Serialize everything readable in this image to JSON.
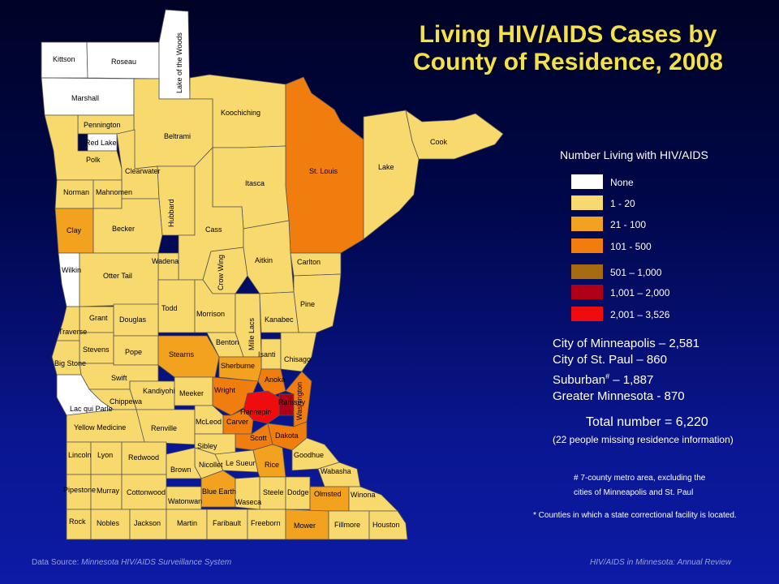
{
  "title": {
    "line1": "Living HIV/AIDS Cases by",
    "line2": "County of Residence, 2008"
  },
  "colors": {
    "none": "#ffffff",
    "c1_20": "#f8d96d",
    "c21_100": "#f2a21f",
    "c101_500": "#f07d0d",
    "c501_1000": "#a76b13",
    "c1001_2000": "#b00018",
    "c2001_3526": "#ee0c0e"
  },
  "legend": {
    "title": "Number Living with HIV/AIDS",
    "items": [
      {
        "label": "None",
        "color": "#ffffff"
      },
      {
        "label": "1 - 20",
        "color": "#f8d96d"
      },
      {
        "label": "21 - 100",
        "color": "#f2a21f"
      },
      {
        "label": "101 - 500",
        "color": "#f07d0d"
      },
      {
        "label": "501 – 1,000",
        "color": "#a76b13"
      },
      {
        "label": "1,001 – 2,000",
        "color": "#b00018"
      },
      {
        "label": "2,001 – 3,526",
        "color": "#ee0c0e"
      }
    ]
  },
  "stats": {
    "minneapolis": "City of Minneapolis – 2,581",
    "st_paul": "City of St. Paul – 860",
    "suburban_prefix": "Suburban",
    "suburban_mark": "#",
    "suburban_suffix": " – 1,887",
    "greater_mn": "Greater Minnesota - 870",
    "total": "Total number = 6,220",
    "missing": "(22 people missing residence information)"
  },
  "footnotes": {
    "metro_line1": "# 7-county metro area, excluding the",
    "metro_line2": "cities of Minneapolis and St. Paul",
    "corrections": "* Counties in which a state correctional facility is located."
  },
  "source": {
    "prefix": "Data Source: ",
    "name": "Minnesota HIV/AIDS Surveillance System"
  },
  "review": "HIV/AIDS in Minnesota: Annual Review",
  "counties": {
    "kittson": "Kittson",
    "roseau": "Roseau",
    "lake_of_the_woods": "Lake of the Woods",
    "marshall": "Marshall",
    "koochiching": "Koochiching",
    "pennington": "Pennington",
    "red_lake": "Red Lake",
    "polk": "Polk",
    "beltrami": "Beltrami",
    "clearwater": "Clearwater",
    "st_louis": "St. Louis",
    "lake": "Lake",
    "cook": "Cook",
    "norman": "Norman",
    "mahnomen": "Mahnomen",
    "itasca": "Itasca",
    "hubbard": "Hubbard",
    "clay": "Clay",
    "becker": "Becker",
    "cass": "Cass",
    "wilkin": "Wilkin",
    "wadena": "Wadena",
    "crow_wing": "Crow Wing",
    "aitkin": "Aitkin",
    "carlton": "Carlton",
    "otter_tail": "Otter Tail",
    "pine": "Pine",
    "todd": "Todd",
    "morrison": "Morrison",
    "mille_lacs": "Mille Lacs",
    "kanabec": "Kanabec",
    "grant": "Grant",
    "douglas": "Douglas",
    "traverse": "Traverse",
    "stevens": "Stevens",
    "pope": "Pope",
    "stearns": "Stearns",
    "benton": "Benton",
    "isanti": "Isanti",
    "chisago": "Chisago",
    "big_stone": "Big Stone",
    "sherburne": "Sherburne",
    "swift": "Swift",
    "anoka": "Anoka",
    "kandiyohi": "Kandiyohi",
    "meeker": "Meeker",
    "wright": "Wright",
    "ramsey": "Ramsey",
    "washington": "Washington",
    "chippewa": "Chippewa",
    "hennepin": "Hennepin",
    "lac_qui_parle": "Lac qui Parle",
    "yellow_medicine": "Yellow Medicine",
    "renville": "Renville",
    "mcleod": "McLeod",
    "carver": "Carver",
    "scott": "Scott",
    "dakota": "Dakota",
    "sibley": "Sibley",
    "goodhue": "Goodhue",
    "lincoln": "Lincoln",
    "lyon": "Lyon",
    "redwood": "Redwood",
    "nicollet": "Nicollet",
    "le_sueur": "Le Sueur",
    "rice": "Rice",
    "wabasha": "Wabasha",
    "brown": "Brown",
    "pipestone": "Pipestone",
    "murray": "Murray",
    "cottonwood": "Cottonwood",
    "blue_earth": "Blue Earth",
    "steele": "Steele",
    "dodge": "Dodge",
    "olmsted": "Olmsted",
    "winona": "Winona",
    "watonwan": "Watonwan",
    "waseca": "Waseca",
    "rock": "Rock",
    "nobles": "Nobles",
    "jackson": "Jackson",
    "martin": "Martin",
    "faribault": "Faribault",
    "freeborn": "Freeborn",
    "mower": "Mower",
    "fillmore": "Fillmore",
    "houston": "Houston"
  }
}
